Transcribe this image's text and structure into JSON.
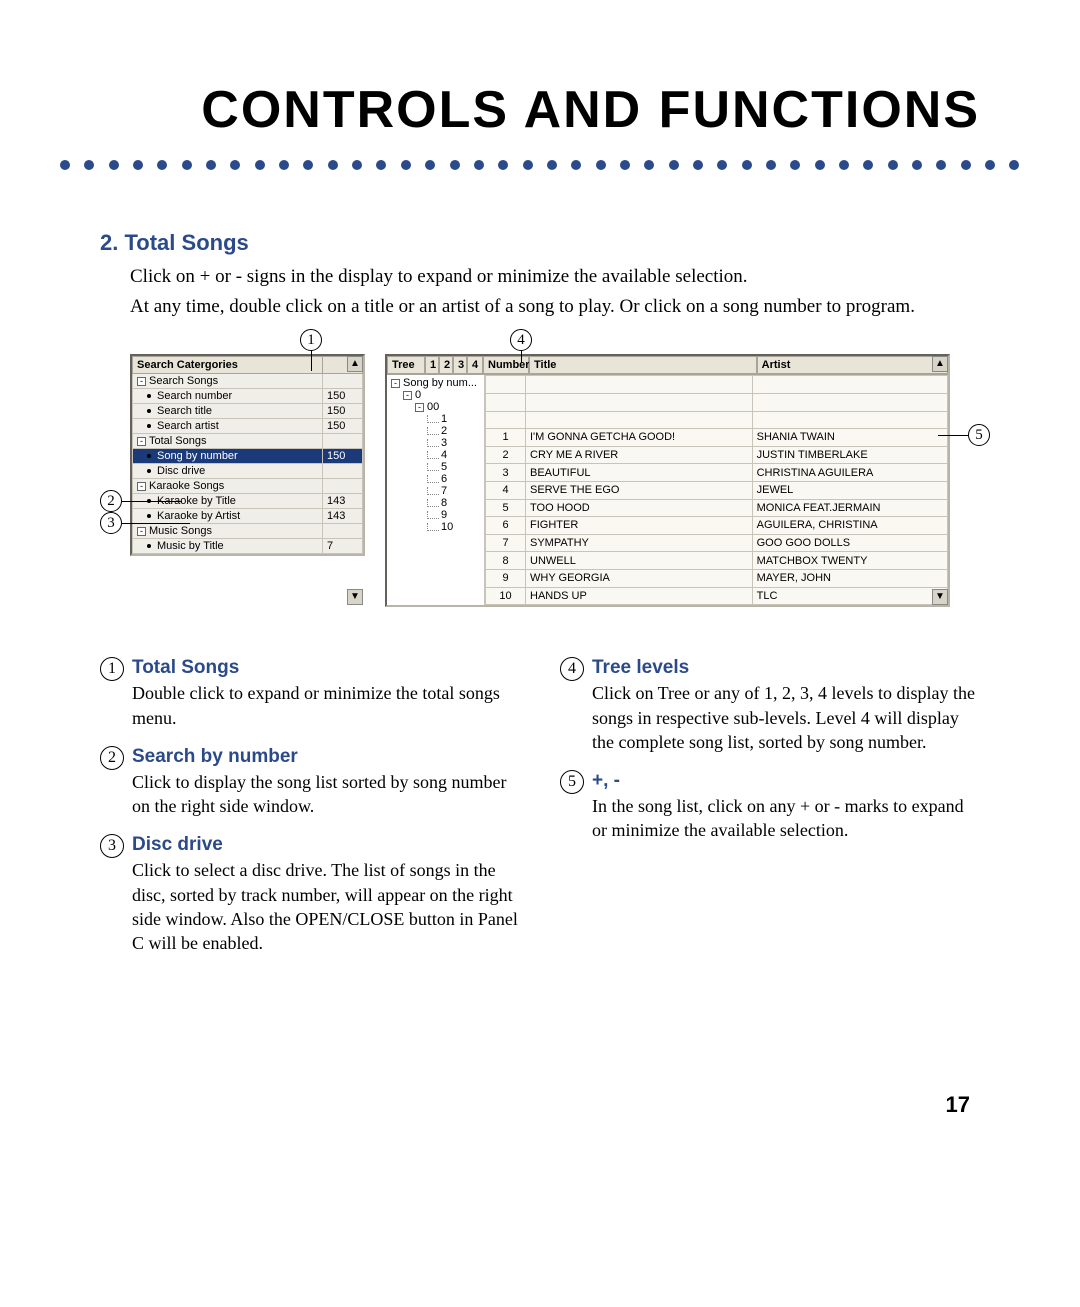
{
  "main_title": "CONTROLS AND FUNCTIONS",
  "section": {
    "num": "2.",
    "title": "Total Songs",
    "desc1": "Click on + or - signs in the display to expand or minimize the available selection.",
    "desc2": "At any time, double click on a title or an artist of a song to play.  Or click on a song number to program."
  },
  "left_panel": {
    "header": "Search Catergories",
    "count_col": "",
    "rows": [
      {
        "icon": "-",
        "indent": 0,
        "label": "Search Songs",
        "count": "",
        "sel": false
      },
      {
        "icon": "",
        "indent": 1,
        "label": "Search number",
        "count": "150",
        "sel": false
      },
      {
        "icon": "",
        "indent": 1,
        "label": "Search title",
        "count": "150",
        "sel": false
      },
      {
        "icon": "",
        "indent": 1,
        "label": "Search artist",
        "count": "150",
        "sel": false
      },
      {
        "icon": "-",
        "indent": 0,
        "label": "Total Songs",
        "count": "",
        "sel": false
      },
      {
        "icon": "",
        "indent": 1,
        "label": "Song by number",
        "count": "150",
        "sel": true
      },
      {
        "icon": "",
        "indent": 1,
        "label": "Disc drive",
        "count": "",
        "sel": false
      },
      {
        "icon": "-",
        "indent": 0,
        "label": "Karaoke Songs",
        "count": "",
        "sel": false
      },
      {
        "icon": "",
        "indent": 1,
        "label": "Karaoke by Title",
        "count": "143",
        "sel": false
      },
      {
        "icon": "",
        "indent": 1,
        "label": "Karaoke by Artist",
        "count": "143",
        "sel": false
      },
      {
        "icon": "-",
        "indent": 0,
        "label": "Music Songs",
        "count": "",
        "sel": false
      },
      {
        "icon": "",
        "indent": 1,
        "label": "Music by Title",
        "count": "7",
        "sel": false
      }
    ]
  },
  "right_panel": {
    "tab_tree": "Tree",
    "tab_1": "1",
    "tab_2": "2",
    "tab_3": "3",
    "tab_4": "4",
    "col_number": "Number",
    "col_title": "Title",
    "col_artist": "Artist",
    "tree_root": "Song by num...",
    "tree_l1": "0",
    "tree_l2": "00",
    "songs": [
      {
        "n": "1",
        "num": "1",
        "title": "I'M GONNA GETCHA GOOD!",
        "artist": "SHANIA TWAIN"
      },
      {
        "n": "2",
        "num": "2",
        "title": "CRY ME A RIVER",
        "artist": "JUSTIN TIMBERLAKE"
      },
      {
        "n": "3",
        "num": "3",
        "title": "BEAUTIFUL",
        "artist": "CHRISTINA AGUILERA"
      },
      {
        "n": "4",
        "num": "4",
        "title": "SERVE THE EGO",
        "artist": "JEWEL"
      },
      {
        "n": "5",
        "num": "5",
        "title": "TOO HOOD",
        "artist": "MONICA FEAT.JERMAIN"
      },
      {
        "n": "6",
        "num": "6",
        "title": "FIGHTER",
        "artist": "AGUILERA, CHRISTINA"
      },
      {
        "n": "7",
        "num": "7",
        "title": "SYMPATHY",
        "artist": "GOO GOO DOLLS"
      },
      {
        "n": "8",
        "num": "8",
        "title": "UNWELL",
        "artist": "MATCHBOX TWENTY"
      },
      {
        "n": "9",
        "num": "9",
        "title": "WHY GEORGIA",
        "artist": "MAYER, JOHN"
      },
      {
        "n": "10",
        "num": "10",
        "title": "HANDS UP",
        "artist": "TLC"
      }
    ]
  },
  "callouts": {
    "c1": "1",
    "c2": "2",
    "c3": "3",
    "c4": "4",
    "c5": "5"
  },
  "expl": {
    "e1": {
      "n": "1",
      "title": "Total Songs",
      "body": "Double click to expand or minimize the total songs menu."
    },
    "e2": {
      "n": "2",
      "title": "Search by number",
      "body": "Click to display the song list sorted by song number on the right side window."
    },
    "e3": {
      "n": "3",
      "title": "Disc drive",
      "body": "Click to select a disc drive.  The list of songs in the disc, sorted by track number, will appear on the right side window.  Also the OPEN/CLOSE button in Panel C will be enabled."
    },
    "e4": {
      "n": "4",
      "title": "Tree levels",
      "body": "Click on Tree or any of 1, 2, 3, 4 levels to display the songs in respective sub-levels.  Level 4 will display the complete song list, sorted by song number."
    },
    "e5": {
      "n": "5",
      "title": "+, -",
      "body": "In the song list, click on any + or - marks to expand or minimize the available selection."
    }
  },
  "page_number": "17",
  "style": {
    "accent_color": "#2b4a8a",
    "selected_bg": "#1a3a7a",
    "panel_bg": "#f0eee8",
    "body_font": "Times New Roman",
    "heading_font": "Arial",
    "title_font": "Impact"
  }
}
